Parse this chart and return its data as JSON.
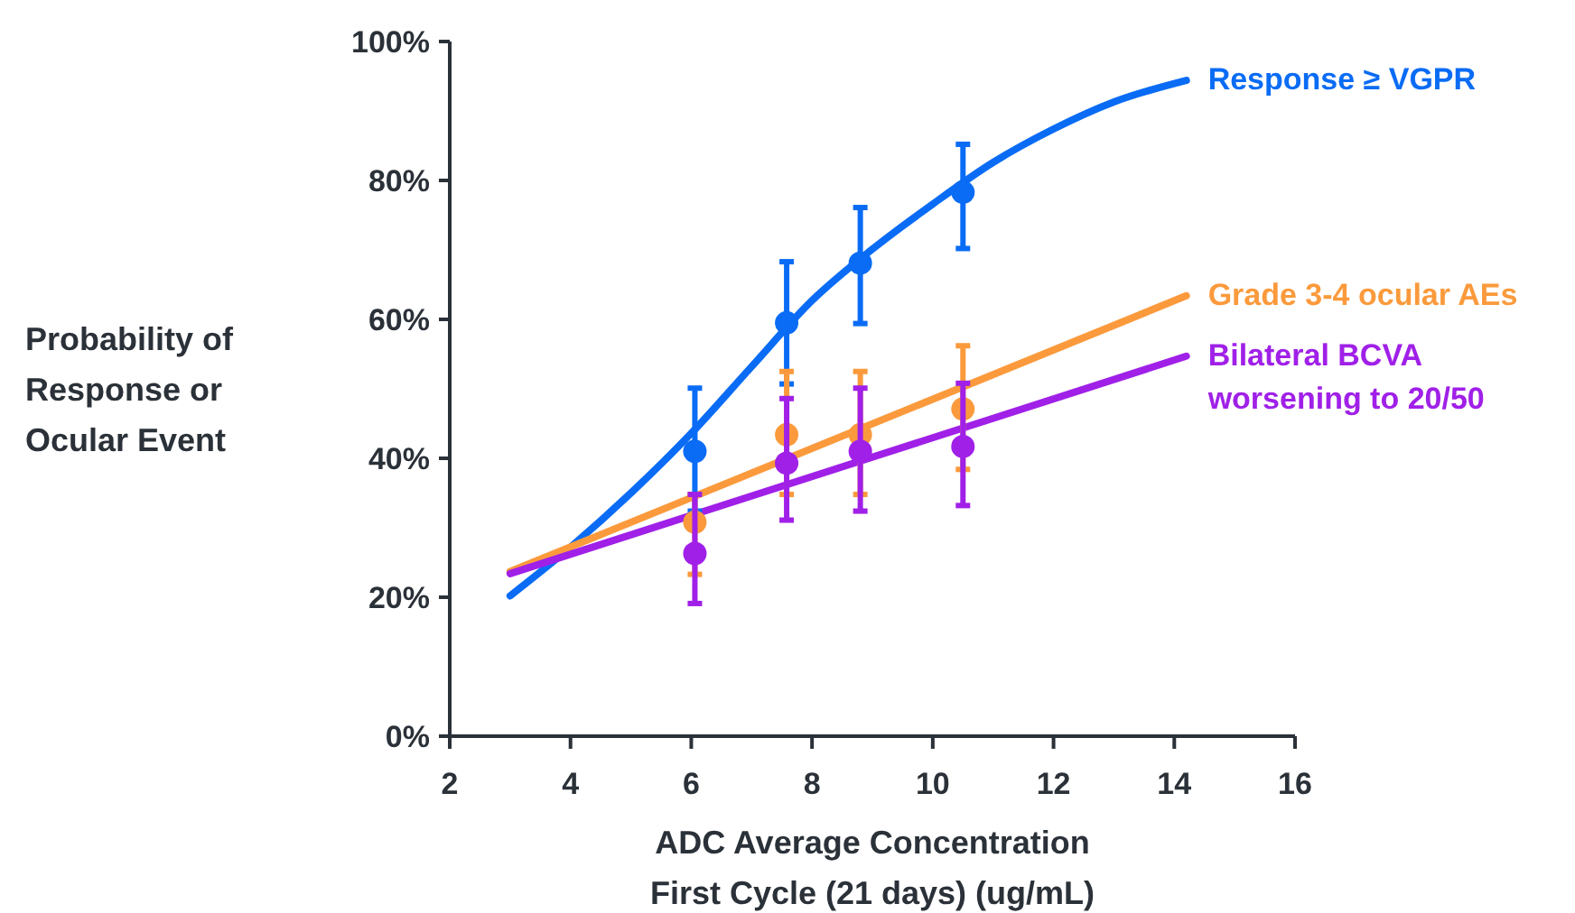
{
  "chart_data": {
    "type": "line",
    "xlabel": "ADC Average Concentration First Cycle (21 days) (ug/mL)",
    "ylabel": "Probability of Response or Ocular Event",
    "xlim": [
      2,
      16
    ],
    "xticks": [
      2,
      4,
      6,
      8,
      10,
      12,
      14,
      16
    ],
    "ylim": [
      0,
      100
    ],
    "yticks": [
      {
        "value": 0,
        "label": "0%"
      },
      {
        "value": 20,
        "label": "20%"
      },
      {
        "value": 40,
        "label": "40%"
      },
      {
        "value": 60,
        "label": "60%"
      },
      {
        "value": 80,
        "label": "80%"
      },
      {
        "value": 100,
        "label": "100%"
      }
    ],
    "grid": false,
    "legend": false,
    "marker": "none",
    "line_style": "solid",
    "series": [
      {
        "name": "Response ≥ VGPR",
        "color": "#0a6cf5",
        "x": [
          3,
          4,
          5,
          6,
          7,
          8,
          9,
          10,
          11,
          12,
          13,
          14.2
        ],
        "values": [
          20.2,
          27.2,
          35,
          43.6,
          53.2,
          62.7,
          70.1,
          76.6,
          82.6,
          87.4,
          91.3,
          94.4
        ]
      },
      {
        "name": "Grade 3-4 ocular AEs",
        "color": "#fb9a3c",
        "x": [
          3,
          14.2
        ],
        "values": [
          23.7,
          63.4
        ]
      },
      {
        "name": "Bilateral BCVA worsening to 20/50",
        "color": "#a020e8",
        "x": [
          3,
          14.2
        ],
        "values": [
          23.4,
          54.7
        ]
      },
      {
        "type": "scatter",
        "marker": "circle",
        "color": "#0a6cf5",
        "x": [
          6.06,
          7.58,
          8.8,
          10.5
        ],
        "values": [
          41,
          59.5,
          68.1,
          78.3
        ],
        "errors": [
          [
            32.4,
            50.1
          ],
          [
            50.7,
            68.3
          ],
          [
            59.4,
            76.1
          ],
          [
            70.2,
            85.2
          ]
        ]
      },
      {
        "type": "scatter",
        "marker": "circle",
        "color": "#fb9a3c",
        "x": [
          6.06,
          7.58,
          8.8,
          10.5
        ],
        "values": [
          30.8,
          43.4,
          43.4,
          47.1
        ],
        "errors": [
          [
            23.3,
            34.8
          ],
          [
            34.8,
            52.5
          ],
          [
            34.8,
            52.5
          ],
          [
            38.4,
            56.2
          ]
        ]
      },
      {
        "type": "scatter",
        "marker": "circle",
        "color": "#a020e8",
        "x": [
          6.06,
          7.58,
          8.8,
          10.5
        ],
        "values": [
          26.3,
          39.3,
          41,
          41.7
        ],
        "errors": [
          [
            19.1,
            34.8
          ],
          [
            31.1,
            48.6
          ],
          [
            32.4,
            50.1
          ],
          [
            33.2,
            50.8
          ]
        ]
      }
    ]
  }
}
